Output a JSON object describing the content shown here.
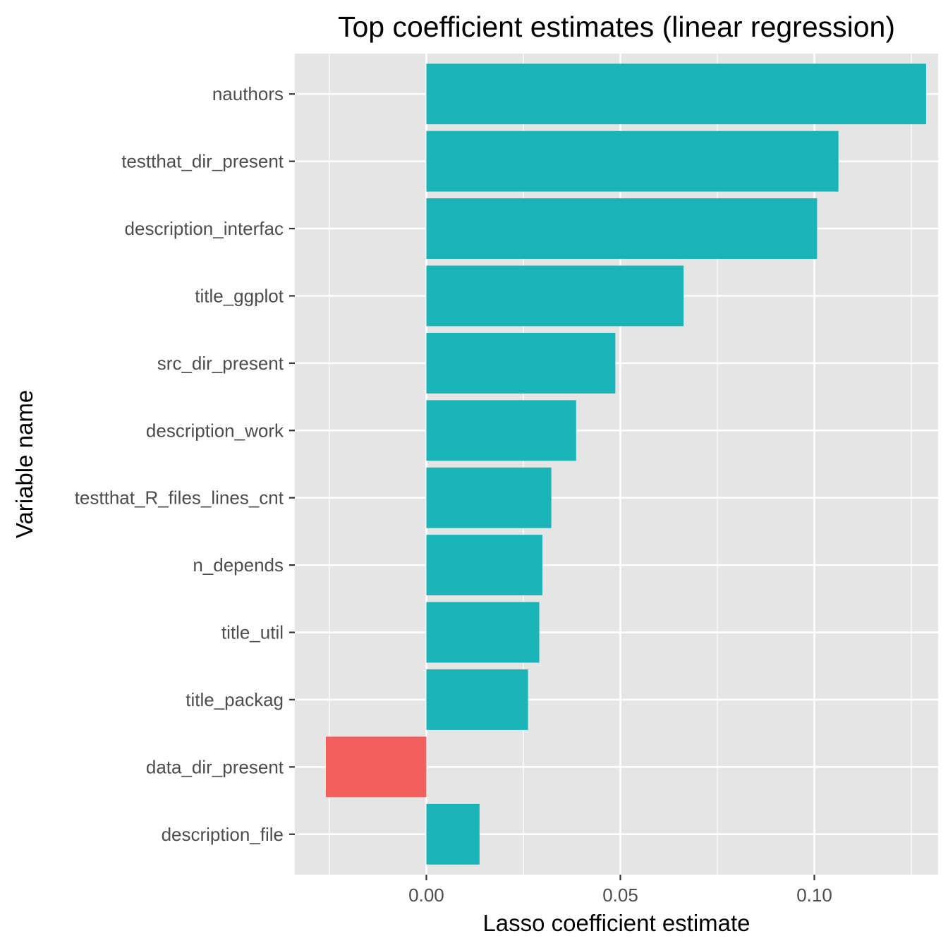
{
  "chart_data": {
    "type": "bar",
    "orientation": "horizontal",
    "title": "Top coefficient estimates (linear regression)",
    "xlabel": "Lasso coefficient estimate",
    "ylabel": "Variable name",
    "categories": [
      "nauthors",
      "testthat_dir_present",
      "description_interfac",
      "title_ggplot",
      "src_dir_present",
      "description_work",
      "testthat_R_files_lines_cnt",
      "n_depends",
      "title_util",
      "title_packag",
      "data_dir_present",
      "description_file"
    ],
    "values": [
      0.1288,
      0.1062,
      0.1007,
      0.0663,
      0.0487,
      0.0386,
      0.0322,
      0.0299,
      0.0291,
      0.0262,
      -0.0259,
      0.0137
    ],
    "xlim": [
      -0.0339,
      0.1319
    ],
    "xticks": [
      0.0,
      0.05,
      0.1
    ],
    "xtick_labels": [
      "0.00",
      "0.05",
      "0.10"
    ],
    "grid": true,
    "legend": "none",
    "colors": {
      "positive": "#19b3b8",
      "negative": "#f25f5c",
      "panel": "#e5e5e5",
      "grid": "#ffffff"
    }
  }
}
